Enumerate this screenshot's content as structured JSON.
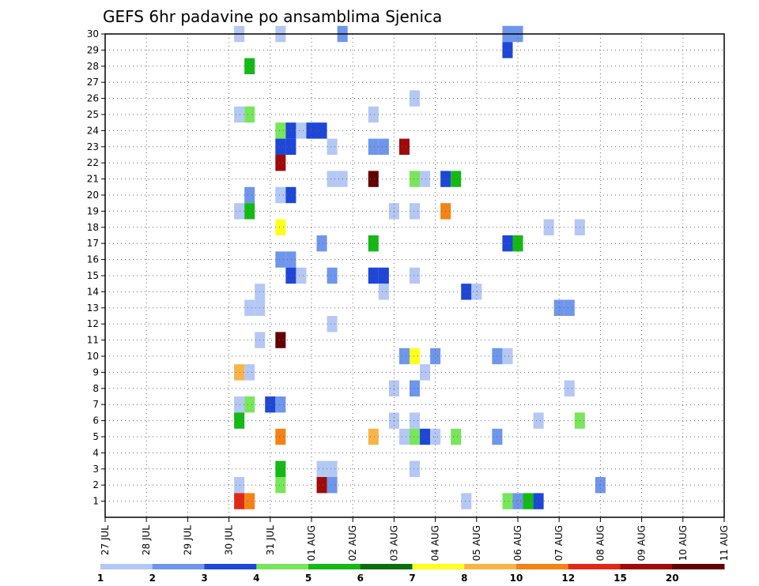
{
  "chart_data": {
    "type": "heatmap",
    "title": "GEFS 6hr padavine po ansamblima Sjenica",
    "xlabel": "",
    "ylabel": "",
    "x_tick_labels": [
      "27 JUL",
      "28 JUL",
      "29 JUL",
      "30 JUL",
      "31 JUL",
      "01 AUG",
      "02 AUG",
      "03 AUG",
      "04 AUG",
      "05 AUG",
      "06 AUG",
      "07 AUG",
      "08 AUG",
      "09 AUG",
      "10 AUG",
      "11 AUG"
    ],
    "y_range": [
      0,
      30
    ],
    "y_ticks": [
      1,
      2,
      3,
      4,
      5,
      6,
      7,
      8,
      9,
      10,
      11,
      12,
      13,
      14,
      15,
      16,
      17,
      18,
      19,
      20,
      21,
      22,
      23,
      24,
      25,
      26,
      27,
      28,
      29,
      30
    ],
    "grid": true,
    "colorbar": {
      "labels": [
        "1",
        "2",
        "3",
        "4",
        "5",
        "6",
        "7",
        "8",
        "10",
        "12",
        "15",
        "20"
      ],
      "colors": [
        "#b4c8f5",
        "#6e96eb",
        "#1e46d7",
        "#78e65a",
        "#14b914",
        "#0a6e0a",
        "#ffff1e",
        "#fab446",
        "#f58214",
        "#e12814",
        "#a00a0a",
        "#640000"
      ]
    },
    "cells": [
      {
        "t": 30.25,
        "m": 30,
        "c": 1
      },
      {
        "t": 31.25,
        "m": 30,
        "c": 1
      },
      {
        "t": 32.75,
        "m": 30,
        "c": 2
      },
      {
        "t": 36.75,
        "m": 30,
        "c": 2
      },
      {
        "t": 37,
        "m": 30,
        "c": 2
      },
      {
        "t": 36.75,
        "m": 29,
        "c": 3
      },
      {
        "t": 30.5,
        "m": 28,
        "c": 5
      },
      {
        "t": 34.5,
        "m": 26,
        "c": 1
      },
      {
        "t": 30.25,
        "m": 25,
        "c": 1
      },
      {
        "t": 30.5,
        "m": 25,
        "c": 4
      },
      {
        "t": 33.5,
        "m": 25,
        "c": 1
      },
      {
        "t": 31.25,
        "m": 24,
        "c": 4
      },
      {
        "t": 31.5,
        "m": 24,
        "c": 3
      },
      {
        "t": 31.75,
        "m": 24,
        "c": 1
      },
      {
        "t": 32,
        "m": 24,
        "c": 3
      },
      {
        "t": 32.25,
        "m": 24,
        "c": 3
      },
      {
        "t": 31.25,
        "m": 23,
        "c": 3
      },
      {
        "t": 31.5,
        "m": 23,
        "c": 3
      },
      {
        "t": 32.5,
        "m": 23,
        "c": 1
      },
      {
        "t": 33.5,
        "m": 23,
        "c": 2
      },
      {
        "t": 33.75,
        "m": 23,
        "c": 2
      },
      {
        "t": 34.25,
        "m": 23,
        "c": 11
      },
      {
        "t": 31.25,
        "m": 22,
        "c": 11
      },
      {
        "t": 32.5,
        "m": 21,
        "c": 1
      },
      {
        "t": 32.75,
        "m": 21,
        "c": 1
      },
      {
        "t": 33.5,
        "m": 21,
        "c": 12
      },
      {
        "t": 34.5,
        "m": 21,
        "c": 4
      },
      {
        "t": 34.75,
        "m": 21,
        "c": 1
      },
      {
        "t": 35.25,
        "m": 21,
        "c": 3
      },
      {
        "t": 35.5,
        "m": 21,
        "c": 5
      },
      {
        "t": 30.5,
        "m": 20,
        "c": 2
      },
      {
        "t": 31.25,
        "m": 20,
        "c": 1
      },
      {
        "t": 31.5,
        "m": 20,
        "c": 3
      },
      {
        "t": 30.25,
        "m": 19,
        "c": 1
      },
      {
        "t": 30.5,
        "m": 19,
        "c": 5
      },
      {
        "t": 34,
        "m": 19,
        "c": 1
      },
      {
        "t": 34.5,
        "m": 19,
        "c": 1
      },
      {
        "t": 35.25,
        "m": 19,
        "c": 9
      },
      {
        "t": 31.25,
        "m": 18,
        "c": 7
      },
      {
        "t": 37.75,
        "m": 18,
        "c": 1
      },
      {
        "t": 38.5,
        "m": 18,
        "c": 1
      },
      {
        "t": 32.25,
        "m": 17,
        "c": 2
      },
      {
        "t": 33.5,
        "m": 17,
        "c": 5
      },
      {
        "t": 36.75,
        "m": 17,
        "c": 3
      },
      {
        "t": 37,
        "m": 17,
        "c": 5
      },
      {
        "t": 31.25,
        "m": 16,
        "c": 2
      },
      {
        "t": 31.5,
        "m": 16,
        "c": 2
      },
      {
        "t": 31.5,
        "m": 15,
        "c": 3
      },
      {
        "t": 31.75,
        "m": 15,
        "c": 1
      },
      {
        "t": 32.5,
        "m": 15,
        "c": 2
      },
      {
        "t": 33.5,
        "m": 15,
        "c": 3
      },
      {
        "t": 33.75,
        "m": 15,
        "c": 3
      },
      {
        "t": 34.5,
        "m": 15,
        "c": 1
      },
      {
        "t": 30.75,
        "m": 14,
        "c": 1
      },
      {
        "t": 33.75,
        "m": 14,
        "c": 1
      },
      {
        "t": 35.75,
        "m": 14,
        "c": 3
      },
      {
        "t": 36,
        "m": 14,
        "c": 1
      },
      {
        "t": 30.5,
        "m": 13,
        "c": 1
      },
      {
        "t": 30.75,
        "m": 13,
        "c": 1
      },
      {
        "t": 38,
        "m": 13,
        "c": 2
      },
      {
        "t": 38.25,
        "m": 13,
        "c": 2
      },
      {
        "t": 32.5,
        "m": 12,
        "c": 1
      },
      {
        "t": 30.75,
        "m": 11,
        "c": 1
      },
      {
        "t": 31.25,
        "m": 11,
        "c": 12
      },
      {
        "t": 34.25,
        "m": 10,
        "c": 2
      },
      {
        "t": 34.5,
        "m": 10,
        "c": 7
      },
      {
        "t": 35,
        "m": 10,
        "c": 2
      },
      {
        "t": 36.5,
        "m": 10,
        "c": 2
      },
      {
        "t": 36.75,
        "m": 10,
        "c": 1
      },
      {
        "t": 30.25,
        "m": 9,
        "c": 8
      },
      {
        "t": 30.5,
        "m": 9,
        "c": 1
      },
      {
        "t": 34.75,
        "m": 9,
        "c": 1
      },
      {
        "t": 34,
        "m": 8,
        "c": 1
      },
      {
        "t": 34.5,
        "m": 8,
        "c": 2
      },
      {
        "t": 38.25,
        "m": 8,
        "c": 1
      },
      {
        "t": 30.25,
        "m": 7,
        "c": 1
      },
      {
        "t": 30.5,
        "m": 7,
        "c": 4
      },
      {
        "t": 31,
        "m": 7,
        "c": 3
      },
      {
        "t": 31.25,
        "m": 7,
        "c": 2
      },
      {
        "t": 30.25,
        "m": 6,
        "c": 5
      },
      {
        "t": 34,
        "m": 6,
        "c": 1
      },
      {
        "t": 34.5,
        "m": 6,
        "c": 1
      },
      {
        "t": 37.5,
        "m": 6,
        "c": 1
      },
      {
        "t": 38.5,
        "m": 6,
        "c": 4
      },
      {
        "t": 31.25,
        "m": 5,
        "c": 9
      },
      {
        "t": 33.5,
        "m": 5,
        "c": 8
      },
      {
        "t": 34.25,
        "m": 5,
        "c": 1
      },
      {
        "t": 34.5,
        "m": 5,
        "c": 4
      },
      {
        "t": 34.75,
        "m": 5,
        "c": 3
      },
      {
        "t": 35,
        "m": 5,
        "c": 1
      },
      {
        "t": 35.5,
        "m": 5,
        "c": 4
      },
      {
        "t": 36.5,
        "m": 5,
        "c": 2
      },
      {
        "t": 31.25,
        "m": 3,
        "c": 5
      },
      {
        "t": 32.25,
        "m": 3,
        "c": 1
      },
      {
        "t": 32.5,
        "m": 3,
        "c": 1
      },
      {
        "t": 34.5,
        "m": 3,
        "c": 1
      },
      {
        "t": 30.25,
        "m": 2,
        "c": 1
      },
      {
        "t": 31.25,
        "m": 2,
        "c": 4
      },
      {
        "t": 32.25,
        "m": 2,
        "c": 11
      },
      {
        "t": 32.5,
        "m": 2,
        "c": 2
      },
      {
        "t": 39,
        "m": 2,
        "c": 2
      },
      {
        "t": 30.25,
        "m": 1,
        "c": 10
      },
      {
        "t": 30.5,
        "m": 1,
        "c": 9
      },
      {
        "t": 35.75,
        "m": 1,
        "c": 1
      },
      {
        "t": 36.75,
        "m": 1,
        "c": 4
      },
      {
        "t": 37,
        "m": 1,
        "c": 2
      },
      {
        "t": 37.25,
        "m": 1,
        "c": 5
      },
      {
        "t": 37.5,
        "m": 1,
        "c": 3
      }
    ]
  }
}
